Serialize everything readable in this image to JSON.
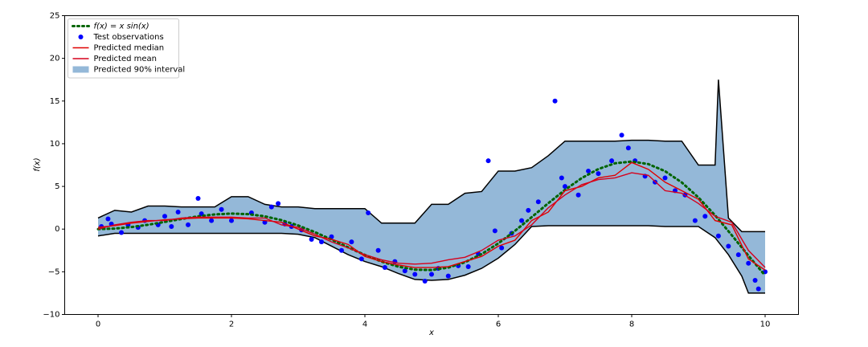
{
  "chart_data": {
    "type": "line",
    "xlabel": "x",
    "ylabel": "f(x)",
    "xlim": [
      -0.5,
      10.5
    ],
    "ylim": [
      -10,
      25
    ],
    "xticks": [
      0,
      2,
      4,
      6,
      8,
      10
    ],
    "yticks": [
      {
        "value": -10,
        "label": "−10"
      },
      {
        "value": -5,
        "label": "−5"
      },
      0,
      5,
      10,
      15,
      20,
      25
    ],
    "legend": "upper left",
    "series": [
      {
        "name": "f(x) = x sin(x)",
        "kind": "line",
        "style": "dotted",
        "color": "#006400",
        "x": [
          0,
          0.25,
          0.5,
          0.75,
          1,
          1.25,
          1.5,
          1.75,
          2,
          2.25,
          2.5,
          2.75,
          3,
          3.25,
          3.5,
          3.75,
          4,
          4.25,
          4.5,
          4.75,
          5,
          5.25,
          5.5,
          5.75,
          6,
          6.25,
          6.5,
          6.75,
          7,
          7.25,
          7.5,
          7.75,
          8,
          8.25,
          8.5,
          8.75,
          9,
          9.25,
          9.5,
          9.75,
          10
        ],
        "values": [
          0,
          0.062,
          0.24,
          0.511,
          0.841,
          1.186,
          1.496,
          1.722,
          1.819,
          1.751,
          1.496,
          1.05,
          0.423,
          -0.352,
          -1.228,
          -2.144,
          -3.027,
          -3.804,
          -4.399,
          -4.747,
          -4.795,
          -4.509,
          -3.88,
          -2.923,
          -1.676,
          -0.207,
          1.398,
          3.038,
          4.599,
          5.973,
          7.035,
          7.708,
          7.915,
          7.615,
          6.787,
          5.466,
          3.709,
          1.612,
          -0.714,
          -3.115,
          -5.44
        ]
      },
      {
        "name": "Test observations",
        "kind": "scatter",
        "color": "#0000ff",
        "x": [
          0.05,
          0.15,
          0.2,
          0.35,
          0.45,
          0.6,
          0.7,
          0.9,
          1.0,
          1.1,
          1.2,
          1.35,
          1.5,
          1.55,
          1.7,
          1.85,
          2.0,
          2.3,
          2.5,
          2.6,
          2.7,
          2.8,
          2.9,
          3.05,
          3.2,
          3.35,
          3.5,
          3.65,
          3.8,
          3.95,
          4.05,
          4.2,
          4.3,
          4.45,
          4.6,
          4.75,
          4.9,
          5.0,
          5.1,
          5.25,
          5.4,
          5.55,
          5.7,
          5.85,
          5.95,
          6.05,
          6.2,
          6.35,
          6.45,
          6.6,
          6.85,
          6.95,
          7.0,
          7.2,
          7.35,
          7.5,
          7.7,
          7.85,
          7.95,
          8.05,
          8.2,
          8.35,
          8.5,
          8.65,
          8.8,
          8.95,
          9.1,
          9.3,
          9.45,
          9.6,
          9.75,
          9.85,
          9.9,
          10.0
        ],
        "values": [
          0.3,
          1.2,
          0.6,
          -0.4,
          0.5,
          0.2,
          1.0,
          0.5,
          1.5,
          0.3,
          2.0,
          0.5,
          3.6,
          1.8,
          1.0,
          2.3,
          1.0,
          1.9,
          0.8,
          2.6,
          3.0,
          0.6,
          0.3,
          -0.1,
          -1.2,
          -1.5,
          -0.9,
          -2.5,
          -1.5,
          -3.5,
          1.9,
          -2.5,
          -4.5,
          -3.8,
          -4.9,
          -5.3,
          -6.1,
          -5.3,
          -4.6,
          -5.5,
          -4.3,
          -4.4,
          -2.9,
          8.0,
          -0.2,
          -2.2,
          -0.5,
          1.0,
          2.2,
          3.2,
          15.0,
          6.0,
          5.0,
          4.0,
          6.8,
          6.5,
          8.0,
          11.0,
          9.5,
          8.0,
          6.2,
          5.5,
          6.0,
          4.5,
          4.0,
          1.0,
          1.5,
          -0.8,
          -2.0,
          -3.0,
          -4.0,
          -6.0,
          -7.0,
          -5.0
        ]
      },
      {
        "name": "Predicted median",
        "kind": "line",
        "style": "solid",
        "color": "#e00000",
        "x": [
          0,
          0.25,
          0.5,
          0.75,
          1,
          1.25,
          1.5,
          1.75,
          2,
          2.25,
          2.5,
          2.75,
          3,
          3.25,
          3.5,
          3.75,
          4,
          4.25,
          4.5,
          4.75,
          5,
          5.25,
          5.5,
          5.75,
          6,
          6.25,
          6.5,
          6.75,
          7,
          7.25,
          7.5,
          7.75,
          8,
          8.25,
          8.5,
          8.75,
          9,
          9.25,
          9.5,
          9.75,
          10
        ],
        "values": [
          0.2,
          0.4,
          0.7,
          0.9,
          1.1,
          1.2,
          1.3,
          1.3,
          1.3,
          1.2,
          1.0,
          0.8,
          0.0,
          -0.8,
          -1.2,
          -1.8,
          -3.2,
          -3.8,
          -4.2,
          -4.5,
          -4.5,
          -4.4,
          -3.8,
          -3.2,
          -2.0,
          -1.3,
          1.0,
          2.0,
          4.5,
          5.0,
          6.0,
          6.3,
          7.8,
          7.0,
          5.5,
          4.5,
          3.5,
          1.0,
          0.5,
          -3.5,
          -4.8
        ]
      },
      {
        "name": "Predicted mean",
        "kind": "line",
        "style": "solid",
        "color": "#d6001c",
        "x": [
          0,
          0.25,
          0.5,
          0.75,
          1,
          1.25,
          1.5,
          1.75,
          2,
          2.25,
          2.5,
          2.75,
          3,
          3.25,
          3.5,
          3.75,
          4,
          4.25,
          4.5,
          4.75,
          5,
          5.25,
          5.5,
          5.75,
          6,
          6.25,
          6.5,
          6.75,
          7,
          7.25,
          7.5,
          7.75,
          8,
          8.25,
          8.5,
          8.75,
          9,
          9.25,
          9.5,
          9.75,
          10
        ],
        "values": [
          0.0,
          0.5,
          0.8,
          1.0,
          1.0,
          1.3,
          1.4,
          1.4,
          1.4,
          1.3,
          1.3,
          0.5,
          0.2,
          -0.6,
          -1.5,
          -2.2,
          -3.0,
          -3.6,
          -4.0,
          -4.1,
          -4.0,
          -3.6,
          -3.3,
          -2.5,
          -1.3,
          -0.8,
          0.5,
          2.5,
          4.0,
          5.2,
          5.8,
          6.0,
          6.6,
          6.3,
          4.5,
          4.2,
          3.0,
          1.5,
          0.8,
          -2.5,
          -4.5
        ]
      },
      {
        "name": "Predicted 90% interval",
        "kind": "band",
        "color": "#94b8d8",
        "edge": "#000000",
        "x": [
          0,
          0.25,
          0.5,
          0.75,
          1,
          1.25,
          1.5,
          1.75,
          2,
          2.25,
          2.5,
          2.75,
          3,
          3.25,
          3.5,
          3.75,
          4,
          4.25,
          4.5,
          4.75,
          5,
          5.25,
          5.5,
          5.75,
          6,
          6.25,
          6.5,
          6.75,
          7,
          7.25,
          7.5,
          7.75,
          8,
          8.25,
          8.5,
          8.75,
          9,
          9.25,
          9.3,
          9.45,
          9.65,
          9.75,
          10
        ],
        "upper": [
          1.3,
          2.2,
          2.0,
          2.7,
          2.7,
          2.6,
          2.6,
          2.6,
          3.8,
          3.8,
          2.9,
          2.6,
          2.6,
          2.4,
          2.4,
          2.4,
          2.4,
          0.7,
          0.7,
          0.7,
          2.9,
          2.9,
          4.2,
          4.4,
          6.8,
          6.8,
          7.2,
          8.6,
          10.3,
          10.3,
          10.3,
          10.3,
          10.4,
          10.4,
          10.3,
          10.3,
          7.5,
          7.5,
          17.5,
          1.3,
          -0.3,
          -0.3,
          -0.3
        ],
        "lower": [
          -0.8,
          -0.5,
          -0.5,
          -0.5,
          -0.5,
          -0.5,
          -0.5,
          -0.5,
          -0.5,
          -0.5,
          -0.5,
          -0.5,
          -0.6,
          -1.0,
          -2.0,
          -3.0,
          -3.8,
          -4.4,
          -5.2,
          -5.9,
          -6.0,
          -5.9,
          -5.4,
          -4.6,
          -3.4,
          -1.8,
          0.3,
          0.4,
          0.4,
          0.4,
          0.4,
          0.4,
          0.4,
          0.4,
          0.3,
          0.3,
          0.3,
          -1.0,
          -1.5,
          -3.0,
          -5.5,
          -7.5,
          -7.5
        ]
      }
    ]
  }
}
